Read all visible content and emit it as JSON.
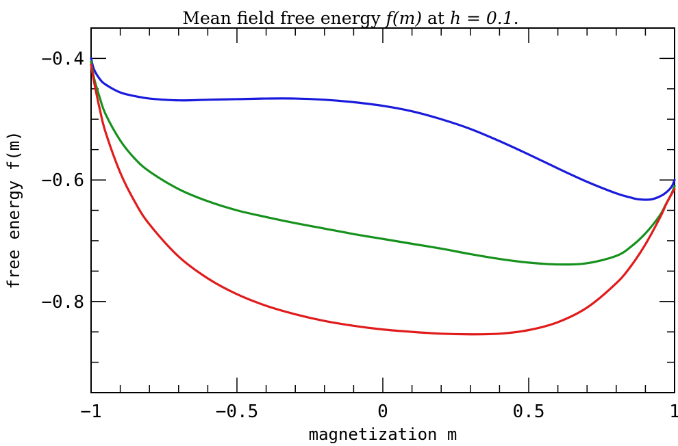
{
  "chart_data": {
    "type": "line",
    "title_prefix": "Mean field free energy ",
    "title_math_1": "f(m)",
    "title_mid": " at ",
    "title_math_2": "h = 0.1",
    "title_suffix": ".",
    "xlabel": "magnetization m",
    "ylabel": "free energy f(m)",
    "xlim": [
      -1,
      1
    ],
    "ylim": [
      -0.95,
      -0.35
    ],
    "x_ticks": [
      {
        "value": -1,
        "label": "−1"
      },
      {
        "value": -0.5,
        "label": "−0.5"
      },
      {
        "value": 0,
        "label": "0"
      },
      {
        "value": 0.5,
        "label": "0.5"
      },
      {
        "value": 1,
        "label": "1"
      }
    ],
    "x_minor_step": 0.1,
    "y_ticks": [
      {
        "value": -0.4,
        "label": "−0.4"
      },
      {
        "value": -0.6,
        "label": "−0.6"
      },
      {
        "value": -0.8,
        "label": "−0.8"
      }
    ],
    "y_minor_step": 0.05,
    "grid": false,
    "series": [
      {
        "color": "#1a1adc",
        "x": [
          -1.0,
          -0.99,
          -0.97,
          -0.95,
          -0.9,
          -0.85,
          -0.8,
          -0.7,
          -0.6,
          -0.5,
          -0.4,
          -0.3,
          -0.2,
          -0.1,
          0.0,
          0.1,
          0.2,
          0.3,
          0.4,
          0.5,
          0.6,
          0.7,
          0.8,
          0.85,
          0.88,
          0.92,
          0.95,
          0.97,
          0.99,
          1.0
        ],
        "y": [
          -0.4,
          -0.418,
          -0.434,
          -0.443,
          -0.456,
          -0.462,
          -0.466,
          -0.469,
          -0.468,
          -0.467,
          -0.466,
          -0.466,
          -0.468,
          -0.472,
          -0.478,
          -0.487,
          -0.5,
          -0.516,
          -0.536,
          -0.558,
          -0.581,
          -0.603,
          -0.622,
          -0.629,
          -0.632,
          -0.632,
          -0.627,
          -0.621,
          -0.611,
          -0.6
        ]
      },
      {
        "color": "#16911d",
        "x": [
          -1.0,
          -0.99,
          -0.97,
          -0.95,
          -0.9,
          -0.85,
          -0.8,
          -0.7,
          -0.6,
          -0.5,
          -0.4,
          -0.3,
          -0.2,
          -0.1,
          0.0,
          0.1,
          0.2,
          0.3,
          0.4,
          0.5,
          0.6,
          0.7,
          0.8,
          0.85,
          0.9,
          0.95,
          0.97,
          0.99,
          1.0
        ],
        "y": [
          -0.405,
          -0.432,
          -0.465,
          -0.492,
          -0.535,
          -0.565,
          -0.586,
          -0.615,
          -0.635,
          -0.65,
          -0.661,
          -0.671,
          -0.68,
          -0.689,
          -0.697,
          -0.705,
          -0.713,
          -0.722,
          -0.73,
          -0.736,
          -0.739,
          -0.737,
          -0.725,
          -0.71,
          -0.688,
          -0.658,
          -0.64,
          -0.622,
          -0.61
        ]
      },
      {
        "color": "#e11b1b",
        "x": [
          -1.0,
          -0.99,
          -0.97,
          -0.95,
          -0.9,
          -0.85,
          -0.8,
          -0.7,
          -0.6,
          -0.5,
          -0.4,
          -0.3,
          -0.2,
          -0.1,
          0.0,
          0.1,
          0.2,
          0.3,
          0.4,
          0.5,
          0.6,
          0.7,
          0.8,
          0.85,
          0.9,
          0.95,
          0.97,
          0.99,
          1.0
        ],
        "y": [
          -0.41,
          -0.438,
          -0.484,
          -0.522,
          -0.588,
          -0.636,
          -0.673,
          -0.726,
          -0.762,
          -0.788,
          -0.807,
          -0.821,
          -0.832,
          -0.84,
          -0.846,
          -0.85,
          -0.853,
          -0.854,
          -0.853,
          -0.847,
          -0.834,
          -0.81,
          -0.77,
          -0.742,
          -0.706,
          -0.662,
          -0.641,
          -0.623,
          -0.615
        ]
      }
    ]
  }
}
